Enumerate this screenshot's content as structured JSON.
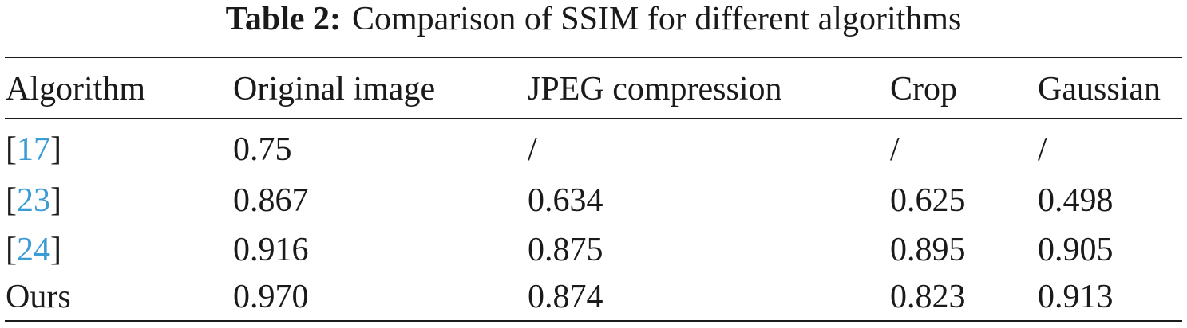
{
  "caption": {
    "label": "Table 2:",
    "text": "Comparison of SSIM for different algorithms"
  },
  "table": {
    "headers": [
      "Algorithm",
      "Original image",
      "JPEG compression",
      "Crop",
      "Gaussian"
    ],
    "rows": [
      {
        "algorithm": {
          "open": "[",
          "ref": "17",
          "close": "]"
        },
        "values": [
          "0.75",
          "/",
          "/",
          "/"
        ]
      },
      {
        "algorithm": {
          "open": "[",
          "ref": "23",
          "close": "]"
        },
        "values": [
          "0.867",
          "0.634",
          "0.625",
          "0.498"
        ]
      },
      {
        "algorithm": {
          "open": "[",
          "ref": "24",
          "close": "]"
        },
        "values": [
          "0.916",
          "0.875",
          "0.895",
          "0.905"
        ]
      },
      {
        "algorithm": {
          "text": "Ours"
        },
        "values": [
          "0.970",
          "0.874",
          "0.823",
          "0.913"
        ]
      }
    ]
  },
  "colors": {
    "text": "#1a1a1a",
    "reference_link": "#3a9bd5"
  }
}
